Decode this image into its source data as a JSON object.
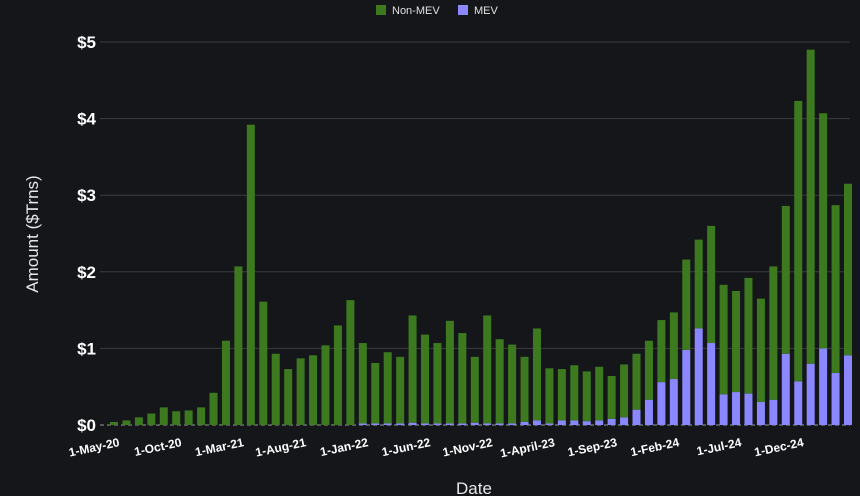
{
  "chart_data": {
    "type": "bar",
    "stacked": true,
    "xlabel": "Date",
    "ylabel": "Amount ($Trns)",
    "ylim": [
      0,
      5
    ],
    "yticks": [
      "$0",
      "$1",
      "$2",
      "$3",
      "$4",
      "$5"
    ],
    "grid": true,
    "legend_position": "top-center",
    "categories": [
      "May-20",
      "Jun-20",
      "Jul-20",
      "Aug-20",
      "Sep-20",
      "Oct-20",
      "Nov-20",
      "Dec-20",
      "Jan-21",
      "Feb-21",
      "Mar-21",
      "Apr-21",
      "May-21",
      "Jun-21",
      "Jul-21",
      "Aug-21",
      "Sep-21",
      "Oct-21",
      "Nov-21",
      "Dec-21",
      "Jan-22",
      "Feb-22",
      "Mar-22",
      "Apr-22",
      "May-22",
      "Jun-22",
      "Jul-22",
      "Aug-22",
      "Sep-22",
      "Oct-22",
      "Nov-22",
      "Dec-22",
      "Jan-23",
      "Feb-23",
      "Mar-23",
      "Apr-23",
      "May-23",
      "Jun-23",
      "Jul-23",
      "Aug-23",
      "Sep-23",
      "Oct-23",
      "Nov-23",
      "Dec-23",
      "Jan-24",
      "Feb-24",
      "Mar-24",
      "Apr-24",
      "May-24",
      "Jun-24",
      "Jul-24",
      "Aug-24",
      "Sep-24",
      "Oct-24",
      "Nov-24",
      "Dec-24",
      "Jan-25",
      "Feb-25",
      "Mar-25",
      "Apr-25"
    ],
    "xtick_labels": [
      {
        "index": 0,
        "label": "1-May-20"
      },
      {
        "index": 5,
        "label": "1-Oct-20"
      },
      {
        "index": 10,
        "label": "1-Mar-21"
      },
      {
        "index": 15,
        "label": "1-Aug-21"
      },
      {
        "index": 20,
        "label": "1-Jan-22"
      },
      {
        "index": 25,
        "label": "1-Jun-22"
      },
      {
        "index": 30,
        "label": "1-Nov-22"
      },
      {
        "index": 35,
        "label": "1-April-23"
      },
      {
        "index": 40,
        "label": "1-Sep-23"
      },
      {
        "index": 45,
        "label": "1-Feb-24"
      },
      {
        "index": 50,
        "label": "1-Jul-24"
      },
      {
        "index": 55,
        "label": "1-Dec-24"
      }
    ],
    "series": [
      {
        "name": "MEV",
        "color": "#8b87ff",
        "values": [
          0,
          0,
          0,
          0,
          0,
          0,
          0,
          0,
          0,
          0,
          0,
          0,
          0,
          0,
          0,
          0,
          0,
          0,
          0,
          0,
          0.02,
          0.02,
          0.02,
          0.02,
          0.03,
          0.02,
          0.02,
          0.02,
          0.02,
          0.03,
          0.02,
          0.02,
          0.02,
          0.04,
          0.06,
          0.02,
          0.06,
          0.06,
          0.05,
          0.06,
          0.08,
          0.1,
          0.2,
          0.33,
          0.56,
          0.6,
          0.98,
          1.26,
          1.07,
          0.4,
          0.43,
          0.41,
          0.3,
          0.33,
          0.93,
          0.57,
          0.8,
          1.0,
          0.68,
          0.91
        ]
      },
      {
        "name": "Non-MEV",
        "color": "#3d7a1f",
        "values": [
          0.04,
          0.06,
          0.1,
          0.15,
          0.23,
          0.18,
          0.19,
          0.23,
          0.42,
          1.1,
          2.07,
          3.92,
          1.61,
          0.93,
          0.73,
          0.87,
          0.91,
          1.04,
          1.3,
          1.63,
          1.05,
          0.79,
          0.93,
          0.87,
          1.4,
          1.16,
          1.05,
          1.34,
          1.18,
          0.86,
          1.41,
          1.1,
          1.03,
          0.85,
          1.2,
          0.72,
          0.67,
          0.72,
          0.65,
          0.7,
          0.56,
          0.69,
          0.73,
          0.77,
          0.81,
          0.87,
          1.18,
          1.16,
          1.53,
          1.43,
          1.32,
          1.51,
          1.35,
          1.74,
          1.93,
          3.66,
          4.1,
          3.07,
          2.19,
          2.24
        ]
      }
    ]
  }
}
